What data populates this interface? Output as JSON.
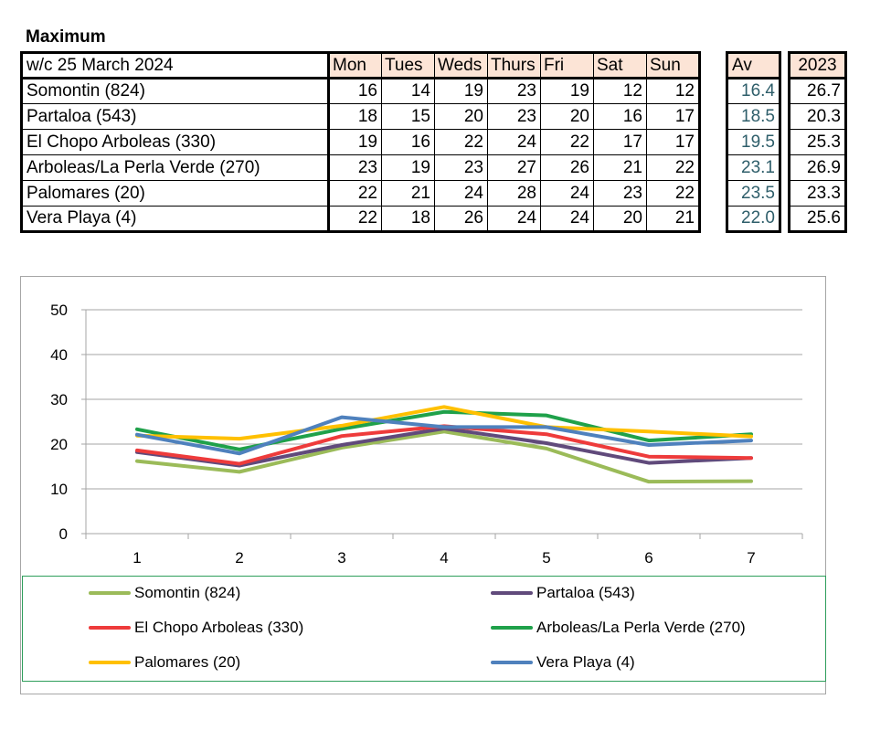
{
  "title": "Maximum",
  "table": {
    "week_label": "w/c  25 March 2024",
    "days": [
      "Mon",
      "Tues",
      "Weds",
      "Thurs",
      "Fri",
      "Sat",
      "Sun"
    ],
    "av_header": "Av",
    "year_header": "2023",
    "rows": [
      {
        "name": "Somontin (824)",
        "values": [
          "16",
          "14",
          "19",
          "23",
          "19",
          "12",
          "12"
        ],
        "av": "16.4",
        "y2023": "26.7"
      },
      {
        "name": "Partaloa (543)",
        "values": [
          "18",
          "15",
          "20",
          "23",
          "20",
          "16",
          "17"
        ],
        "av": "18.5",
        "y2023": "20.3"
      },
      {
        "name": "El Chopo  Arboleas (330)",
        "values": [
          "19",
          "16",
          "22",
          "24",
          "22",
          "17",
          "17"
        ],
        "av": "19.5",
        "y2023": "25.3"
      },
      {
        "name": "Arboleas/La Perla Verde (270)",
        "values": [
          "23",
          "19",
          "23",
          "27",
          "26",
          "21",
          "22"
        ],
        "av": "23.1",
        "y2023": "26.9"
      },
      {
        "name": "Palomares (20)",
        "values": [
          "22",
          "21",
          "24",
          "28",
          "24",
          "23",
          "22"
        ],
        "av": "23.5",
        "y2023": "23.3"
      },
      {
        "name": "Vera Playa (4)",
        "values": [
          "22",
          "18",
          "26",
          "24",
          "24",
          "20",
          "21"
        ],
        "av": "22.0",
        "y2023": "25.6"
      }
    ]
  },
  "chart_data": {
    "type": "line",
    "title": "",
    "xlabel": "",
    "ylabel": "",
    "x": [
      1,
      2,
      3,
      4,
      5,
      6,
      7
    ],
    "ylim": [
      0,
      50
    ],
    "yticks": [
      0,
      10,
      20,
      30,
      40,
      50
    ],
    "grid": true,
    "legend_position": "bottom",
    "series": [
      {
        "name": "Somontin (824)",
        "color": "#9bbb59",
        "values": [
          16.2,
          13.8,
          19.2,
          22.8,
          19.0,
          11.6,
          11.7
        ]
      },
      {
        "name": "Partaloa (543)",
        "color": "#604a7b",
        "values": [
          18.2,
          15.2,
          19.8,
          23.5,
          20.2,
          15.8,
          16.9
        ]
      },
      {
        "name": "El Chopo  Arboleas (330)",
        "color": "#ee3b3b",
        "values": [
          18.6,
          15.6,
          21.8,
          24.0,
          22.2,
          17.2,
          16.9
        ]
      },
      {
        "name": "Arboleas/La Perla Verde (270)",
        "color": "#1fa14a",
        "values": [
          23.3,
          18.8,
          23.4,
          27.2,
          26.4,
          20.8,
          22.2
        ]
      },
      {
        "name": "Palomares (20)",
        "color": "#ffc000",
        "values": [
          21.9,
          21.2,
          24.1,
          28.3,
          23.8,
          22.8,
          21.7
        ]
      },
      {
        "name": "Vera Playa (4)",
        "color": "#4f81bd",
        "values": [
          22.1,
          17.9,
          26.0,
          23.8,
          23.8,
          19.8,
          20.8
        ]
      }
    ]
  }
}
